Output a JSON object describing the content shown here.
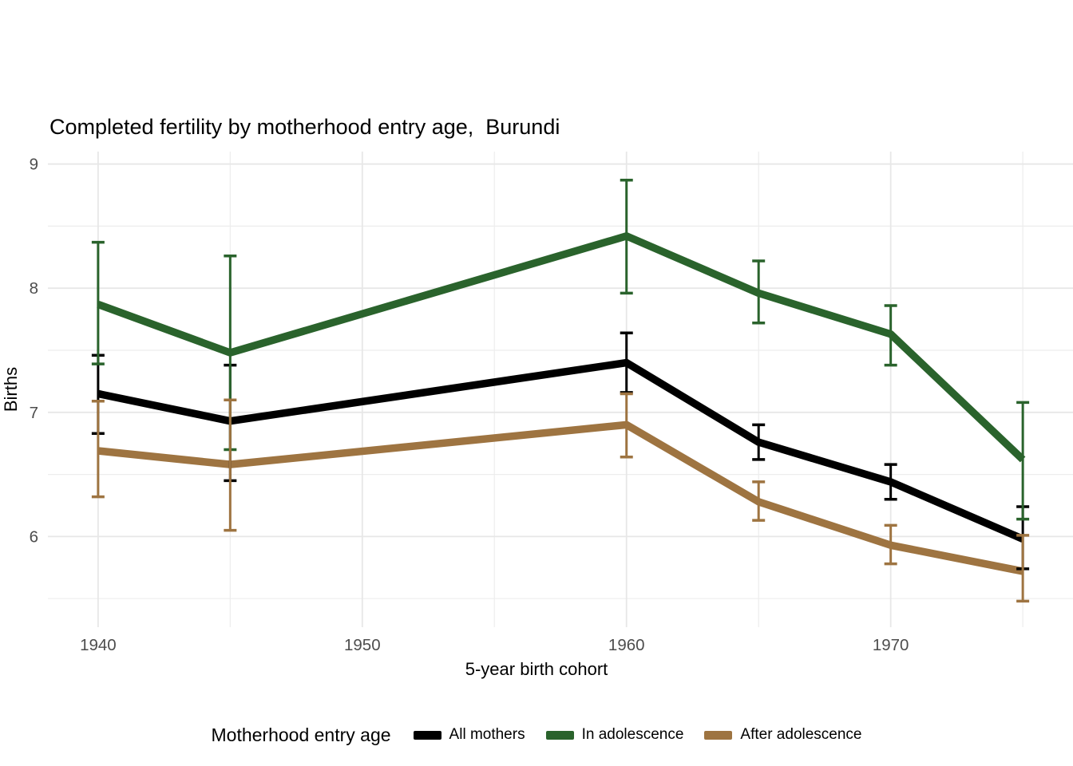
{
  "chart_data": {
    "type": "line",
    "title": "Completed fertility by motherhood entry age,  Burundi",
    "xlabel": "5-year birth cohort",
    "ylabel": "Births",
    "x": [
      1940,
      1945,
      1960,
      1965,
      1970,
      1975
    ],
    "series": [
      {
        "name": "All mothers",
        "color": "#000000",
        "values": [
          7.15,
          6.93,
          7.4,
          6.76,
          6.44,
          5.98
        ],
        "ci_low": [
          6.83,
          6.45,
          7.16,
          6.62,
          6.3,
          5.74
        ],
        "ci_high": [
          7.46,
          7.38,
          7.64,
          6.9,
          6.58,
          6.24
        ]
      },
      {
        "name": "In adolescence",
        "color": "#2A632C",
        "values": [
          7.87,
          7.48,
          8.42,
          7.96,
          7.63,
          6.62
        ],
        "ci_low": [
          7.39,
          6.7,
          7.96,
          7.72,
          7.38,
          6.14
        ],
        "ci_high": [
          8.37,
          8.26,
          8.87,
          8.22,
          7.86,
          7.08
        ]
      },
      {
        "name": "After adolescence",
        "color": "#9E7441",
        "values": [
          6.69,
          6.58,
          6.9,
          6.28,
          5.93,
          5.72
        ],
        "ci_low": [
          6.32,
          6.05,
          6.64,
          6.13,
          5.78,
          5.48
        ],
        "ci_high": [
          7.09,
          7.1,
          7.15,
          6.44,
          6.09,
          6.01
        ]
      }
    ],
    "error_bars": true,
    "xlim": [
      1938.1,
      1976.9
    ],
    "ylim": [
      5.27,
      9.1
    ],
    "x_ticks": {
      "labels": [
        "1940",
        "1950",
        "1960",
        "1970"
      ],
      "positions": [
        1940,
        1950,
        1960,
        1970
      ],
      "minor": [
        1945,
        1955,
        1965,
        1975
      ]
    },
    "y_ticks": {
      "labels": [
        "6",
        "7",
        "8",
        "9"
      ],
      "positions": [
        6,
        7,
        8,
        9
      ],
      "minor": [
        5.5,
        6.5,
        7.5,
        8.5
      ]
    },
    "grid": true,
    "legend_position": "bottom"
  },
  "legend": {
    "title": "Motherhood entry age"
  },
  "colors": {
    "background": "#FFFFFF",
    "grid_major": "#E7E7E7",
    "grid_minor": "#EDEDED",
    "tick_text": "#4D4D4D",
    "title_text": "#000000"
  }
}
